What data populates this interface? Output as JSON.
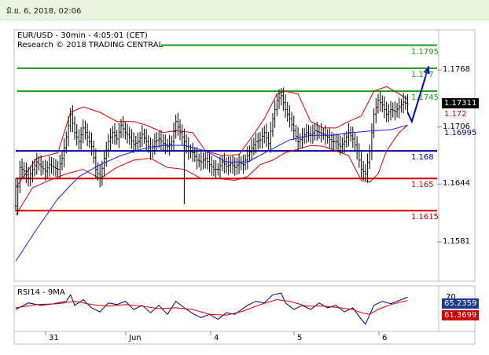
{
  "timestamp": "มิ.ย. 6, 2018, 02:06",
  "chart": {
    "symbol_line": "EUR/USD - 30min - 4:05:01 (CET)",
    "research_line": "Research © 2018 TRADING CENTRAL",
    "rsi_title": "RSI14 - 9MA"
  },
  "colors": {
    "resistance": "#1a9a1a",
    "support": "#d40000",
    "pivot": "#0000aa",
    "price": "#000000",
    "bollinger": "#d40000",
    "moving_average": "#1a1aff",
    "forecast_arrow": "#0000cc",
    "rsi_line": "#000080",
    "rsi_ma": "#d40000",
    "header_bar": "#eaf3df"
  },
  "chart_data": {
    "type": "candlestick",
    "price_axis_ticks": [
      "1.1768",
      "1.1706",
      "1.1644",
      "1.1581"
    ],
    "date_axis_ticks": [
      "31",
      "Jun",
      "4",
      "5",
      "6"
    ],
    "ylim": [
      1.154,
      1.181
    ],
    "levels": [
      {
        "value": 1.1795,
        "label": "1.1795",
        "kind": "resistance"
      },
      {
        "value": 1.177,
        "label": "1.177",
        "kind": "resistance"
      },
      {
        "value": 1.1745,
        "label": "1.1745",
        "kind": "resistance"
      },
      {
        "value": 1.168,
        "label": "1.168",
        "kind": "pivot"
      },
      {
        "value": 1.165,
        "label": "1.165",
        "kind": "support"
      },
      {
        "value": 1.1615,
        "label": "1.1615",
        "kind": "support"
      }
    ],
    "last_price": {
      "value": 1.17311,
      "label": "1.17311"
    },
    "price_markers": [
      {
        "value": 1.172,
        "label": "1.172",
        "kind": "support"
      },
      {
        "value": 1.16995,
        "label": "1.16995",
        "kind": "pivot"
      }
    ],
    "rsi": {
      "value_label": "65.2359",
      "ma_label": "61.3699",
      "scale_label": "70"
    },
    "close_path": [
      [
        0,
        1.162
      ],
      [
        2,
        1.1662
      ],
      [
        4,
        1.1658
      ],
      [
        6,
        1.165
      ],
      [
        8,
        1.166
      ],
      [
        10,
        1.1668
      ],
      [
        12,
        1.1663
      ],
      [
        14,
        1.1658
      ],
      [
        16,
        1.1665
      ],
      [
        18,
        1.1662
      ],
      [
        20,
        1.166
      ],
      [
        22,
        1.1672
      ],
      [
        24,
        1.1695
      ],
      [
        26,
        1.172
      ],
      [
        28,
        1.17
      ],
      [
        30,
        1.169
      ],
      [
        32,
        1.1705
      ],
      [
        34,
        1.1695
      ],
      [
        36,
        1.1685
      ],
      [
        38,
        1.166
      ],
      [
        40,
        1.165
      ],
      [
        42,
        1.1672
      ],
      [
        44,
        1.169
      ],
      [
        46,
        1.17
      ],
      [
        48,
        1.1693
      ],
      [
        50,
        1.1708
      ],
      [
        52,
        1.17
      ],
      [
        54,
        1.1695
      ],
      [
        56,
        1.1687
      ],
      [
        58,
        1.169
      ],
      [
        60,
        1.1698
      ],
      [
        62,
        1.169
      ],
      [
        64,
        1.168
      ],
      [
        66,
        1.169
      ],
      [
        68,
        1.1693
      ],
      [
        70,
        1.1688
      ],
      [
        72,
        1.1685
      ],
      [
        74,
        1.169
      ],
      [
        76,
        1.1712
      ],
      [
        78,
        1.17
      ],
      [
        80,
        1.169
      ],
      [
        82,
        1.168
      ],
      [
        84,
        1.1678
      ],
      [
        86,
        1.167
      ],
      [
        88,
        1.1668
      ],
      [
        90,
        1.1672
      ],
      [
        92,
        1.1665
      ],
      [
        94,
        1.166
      ],
      [
        96,
        1.166
      ],
      [
        98,
        1.1668
      ],
      [
        100,
        1.1663
      ],
      [
        102,
        1.1666
      ],
      [
        104,
        1.1662
      ],
      [
        106,
        1.1667
      ],
      [
        108,
        1.1665
      ],
      [
        110,
        1.1675
      ],
      [
        112,
        1.1683
      ],
      [
        114,
        1.169
      ],
      [
        116,
        1.1692
      ],
      [
        118,
        1.17
      ],
      [
        120,
        1.1688
      ],
      [
        122,
        1.1715
      ],
      [
        124,
        1.1735
      ],
      [
        126,
        1.174
      ],
      [
        128,
        1.1725
      ],
      [
        130,
        1.1715
      ],
      [
        132,
        1.1702
      ],
      [
        134,
        1.169
      ],
      [
        136,
        1.1695
      ],
      [
        138,
        1.17
      ],
      [
        140,
        1.1697
      ],
      [
        142,
        1.1702
      ],
      [
        144,
        1.17
      ],
      [
        146,
        1.1698
      ],
      [
        148,
        1.1695
      ],
      [
        150,
        1.169
      ],
      [
        152,
        1.169
      ],
      [
        154,
        1.1685
      ],
      [
        156,
        1.169
      ],
      [
        158,
        1.17
      ],
      [
        160,
        1.1693
      ],
      [
        162,
        1.168
      ],
      [
        164,
        1.166
      ],
      [
        166,
        1.1655
      ],
      [
        168,
        1.168
      ],
      [
        170,
        1.172
      ],
      [
        172,
        1.1735
      ],
      [
        174,
        1.173
      ],
      [
        176,
        1.172
      ],
      [
        178,
        1.1725
      ],
      [
        180,
        1.1723
      ],
      [
        182,
        1.1728
      ],
      [
        184,
        1.1733
      ],
      [
        186,
        1.1731
      ]
    ],
    "bollinger_upper": [
      [
        0,
        1.164
      ],
      [
        10,
        1.1672
      ],
      [
        20,
        1.1678
      ],
      [
        26,
        1.1722
      ],
      [
        32,
        1.1728
      ],
      [
        40,
        1.1722
      ],
      [
        48,
        1.1712
      ],
      [
        56,
        1.1712
      ],
      [
        62,
        1.1708
      ],
      [
        70,
        1.17
      ],
      [
        76,
        1.1702
      ],
      [
        84,
        1.17
      ],
      [
        90,
        1.168
      ],
      [
        98,
        1.1675
      ],
      [
        106,
        1.1676
      ],
      [
        112,
        1.1695
      ],
      [
        118,
        1.1715
      ],
      [
        124,
        1.1742
      ],
      [
        128,
        1.1745
      ],
      [
        134,
        1.1742
      ],
      [
        140,
        1.1712
      ],
      [
        146,
        1.1705
      ],
      [
        152,
        1.1705
      ],
      [
        158,
        1.1712
      ],
      [
        164,
        1.1718
      ],
      [
        170,
        1.1745
      ],
      [
        176,
        1.175
      ],
      [
        182,
        1.1742
      ],
      [
        186,
        1.1736
      ]
    ],
    "bollinger_lower": [
      [
        0,
        1.161
      ],
      [
        8,
        1.164
      ],
      [
        16,
        1.1648
      ],
      [
        24,
        1.1655
      ],
      [
        32,
        1.166
      ],
      [
        40,
        1.165
      ],
      [
        48,
        1.1662
      ],
      [
        56,
        1.167
      ],
      [
        64,
        1.1672
      ],
      [
        72,
        1.1662
      ],
      [
        80,
        1.166
      ],
      [
        88,
        1.165
      ],
      [
        96,
        1.165
      ],
      [
        104,
        1.1648
      ],
      [
        110,
        1.1652
      ],
      [
        116,
        1.1665
      ],
      [
        122,
        1.167
      ],
      [
        128,
        1.1678
      ],
      [
        134,
        1.1682
      ],
      [
        140,
        1.1686
      ],
      [
        146,
        1.1685
      ],
      [
        152,
        1.168
      ],
      [
        158,
        1.1675
      ],
      [
        164,
        1.1648
      ],
      [
        168,
        1.1646
      ],
      [
        172,
        1.1655
      ],
      [
        176,
        1.168
      ],
      [
        182,
        1.17
      ],
      [
        186,
        1.1708
      ]
    ],
    "moving_average": [
      [
        0,
        1.156
      ],
      [
        10,
        1.1595
      ],
      [
        20,
        1.1628
      ],
      [
        30,
        1.1652
      ],
      [
        40,
        1.1665
      ],
      [
        50,
        1.1675
      ],
      [
        60,
        1.1682
      ],
      [
        70,
        1.1686
      ],
      [
        80,
        1.1686
      ],
      [
        90,
        1.168
      ],
      [
        100,
        1.1668
      ],
      [
        110,
        1.1668
      ],
      [
        120,
        1.168
      ],
      [
        130,
        1.1692
      ],
      [
        140,
        1.1697
      ],
      [
        150,
        1.1697
      ],
      [
        160,
        1.17
      ],
      [
        170,
        1.1702
      ],
      [
        178,
        1.1703
      ],
      [
        186,
        1.1708
      ]
    ],
    "rsi_series": [
      [
        0,
        50
      ],
      [
        6,
        58
      ],
      [
        12,
        55
      ],
      [
        18,
        57
      ],
      [
        24,
        60
      ],
      [
        26,
        68
      ],
      [
        28,
        55
      ],
      [
        32,
        62
      ],
      [
        36,
        52
      ],
      [
        40,
        47
      ],
      [
        44,
        58
      ],
      [
        48,
        56
      ],
      [
        52,
        60
      ],
      [
        56,
        50
      ],
      [
        60,
        55
      ],
      [
        64,
        46
      ],
      [
        68,
        55
      ],
      [
        72,
        44
      ],
      [
        76,
        60
      ],
      [
        80,
        52
      ],
      [
        84,
        45
      ],
      [
        88,
        40
      ],
      [
        92,
        44
      ],
      [
        96,
        38
      ],
      [
        100,
        46
      ],
      [
        104,
        44
      ],
      [
        110,
        55
      ],
      [
        114,
        60
      ],
      [
        118,
        58
      ],
      [
        122,
        68
      ],
      [
        126,
        70
      ],
      [
        128,
        58
      ],
      [
        132,
        50
      ],
      [
        136,
        55
      ],
      [
        140,
        50
      ],
      [
        144,
        58
      ],
      [
        148,
        52
      ],
      [
        152,
        55
      ],
      [
        156,
        47
      ],
      [
        160,
        52
      ],
      [
        164,
        38
      ],
      [
        166,
        32
      ],
      [
        170,
        55
      ],
      [
        174,
        60
      ],
      [
        178,
        57
      ],
      [
        182,
        61
      ],
      [
        186,
        65
      ]
    ],
    "rsi_ma_series": [
      [
        0,
        52
      ],
      [
        10,
        56
      ],
      [
        20,
        57
      ],
      [
        28,
        60
      ],
      [
        36,
        56
      ],
      [
        44,
        54
      ],
      [
        52,
        56
      ],
      [
        60,
        54
      ],
      [
        68,
        51
      ],
      [
        76,
        52
      ],
      [
        84,
        50
      ],
      [
        92,
        44
      ],
      [
        100,
        43
      ],
      [
        108,
        48
      ],
      [
        116,
        56
      ],
      [
        124,
        62
      ],
      [
        130,
        60
      ],
      [
        138,
        54
      ],
      [
        146,
        54
      ],
      [
        154,
        52
      ],
      [
        160,
        50
      ],
      [
        164,
        46
      ],
      [
        168,
        44
      ],
      [
        172,
        50
      ],
      [
        178,
        56
      ],
      [
        186,
        61
      ]
    ],
    "forecast_arrow": {
      "from": [
        186,
        1.1722
      ],
      "via": [
        188,
        1.1712
      ],
      "to": [
        196,
        1.1772
      ]
    },
    "x_last_bar": 186
  }
}
